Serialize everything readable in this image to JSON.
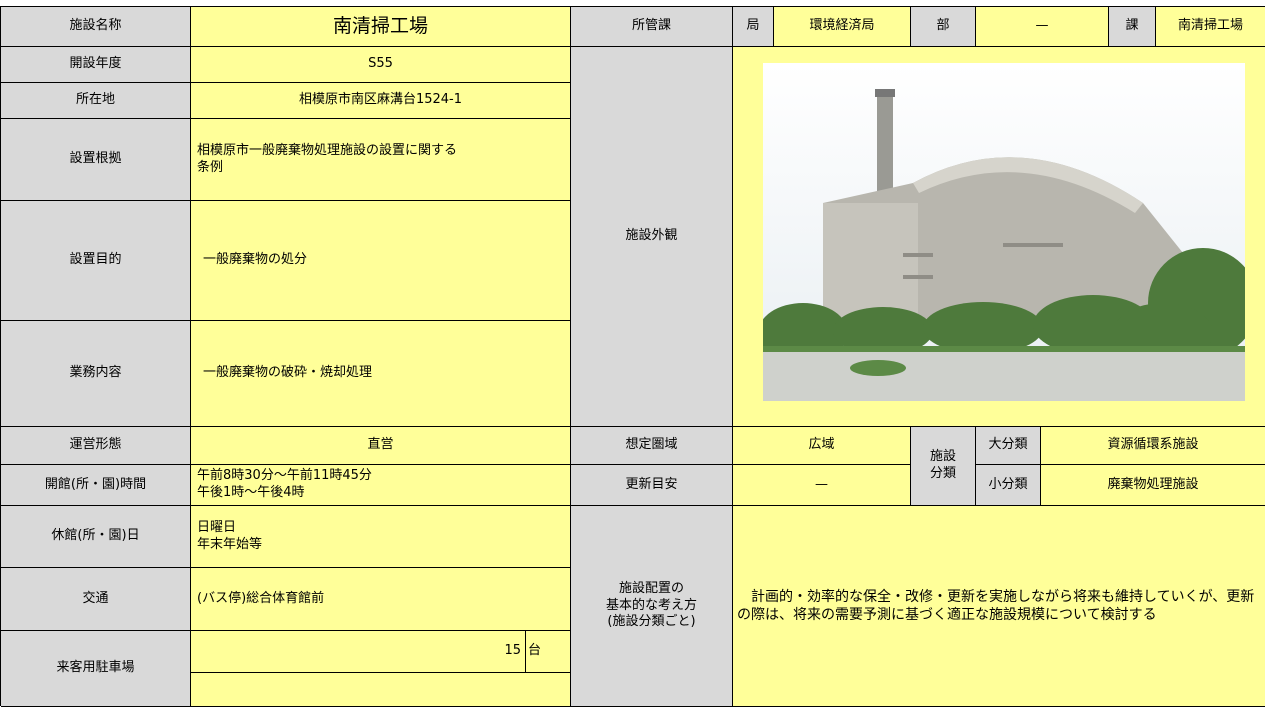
{
  "facility_name": {
    "label": "施設名称",
    "value": "南清掃工場"
  },
  "department": {
    "label": "所管課",
    "bureau_label": "局",
    "bureau": "環境経済局",
    "division_label": "部",
    "division": "—",
    "section_label": "課",
    "section": "南清掃工場"
  },
  "rows": [
    {
      "label": "開設年度",
      "value": "S55"
    },
    {
      "label": "所在地",
      "value": "相模原市南区麻溝台1524-1"
    },
    {
      "label": "設置根拠",
      "value": " 相模原市一般廃棄物処理施設の設置に関する\n条例"
    },
    {
      "label": "設置目的",
      "value": "一般廃棄物の処分"
    },
    {
      "label": "業務内容",
      "value": "一般廃棄物の破砕・焼却処理"
    },
    {
      "label": "運営形態",
      "value": "直営"
    },
    {
      "label": "開館(所・園)時間",
      "value": "午前8時30分～午前11時45分\n午後1時～午後4時"
    },
    {
      "label": "休館(所・園)日",
      "value": "日曜日\n年末年始等"
    },
    {
      "label": "交通",
      "value": "(バス停)総合体育館前"
    }
  ],
  "parking": {
    "label": "来客用駐車場",
    "count": 15,
    "unit": "台"
  },
  "exterior_label": "施設外観",
  "area": {
    "label": "想定圏域",
    "value": "広域"
  },
  "renewal": {
    "label": "更新目安",
    "value": "—"
  },
  "classification": {
    "label": "施設\n分類",
    "major_label": "大分類",
    "major": "資源循環系施設",
    "minor_label": "小分類",
    "minor": "廃棄物処理施設"
  },
  "policy": {
    "label": "施設配置の\n基本的な考え方\n(施設分類ごと)",
    "value": "計画的・効率的な保全・改修・更新を実施しながら将来も維持していくが、更新の際は、将来の需要予測に基づく適正な施設規模について検討する"
  }
}
